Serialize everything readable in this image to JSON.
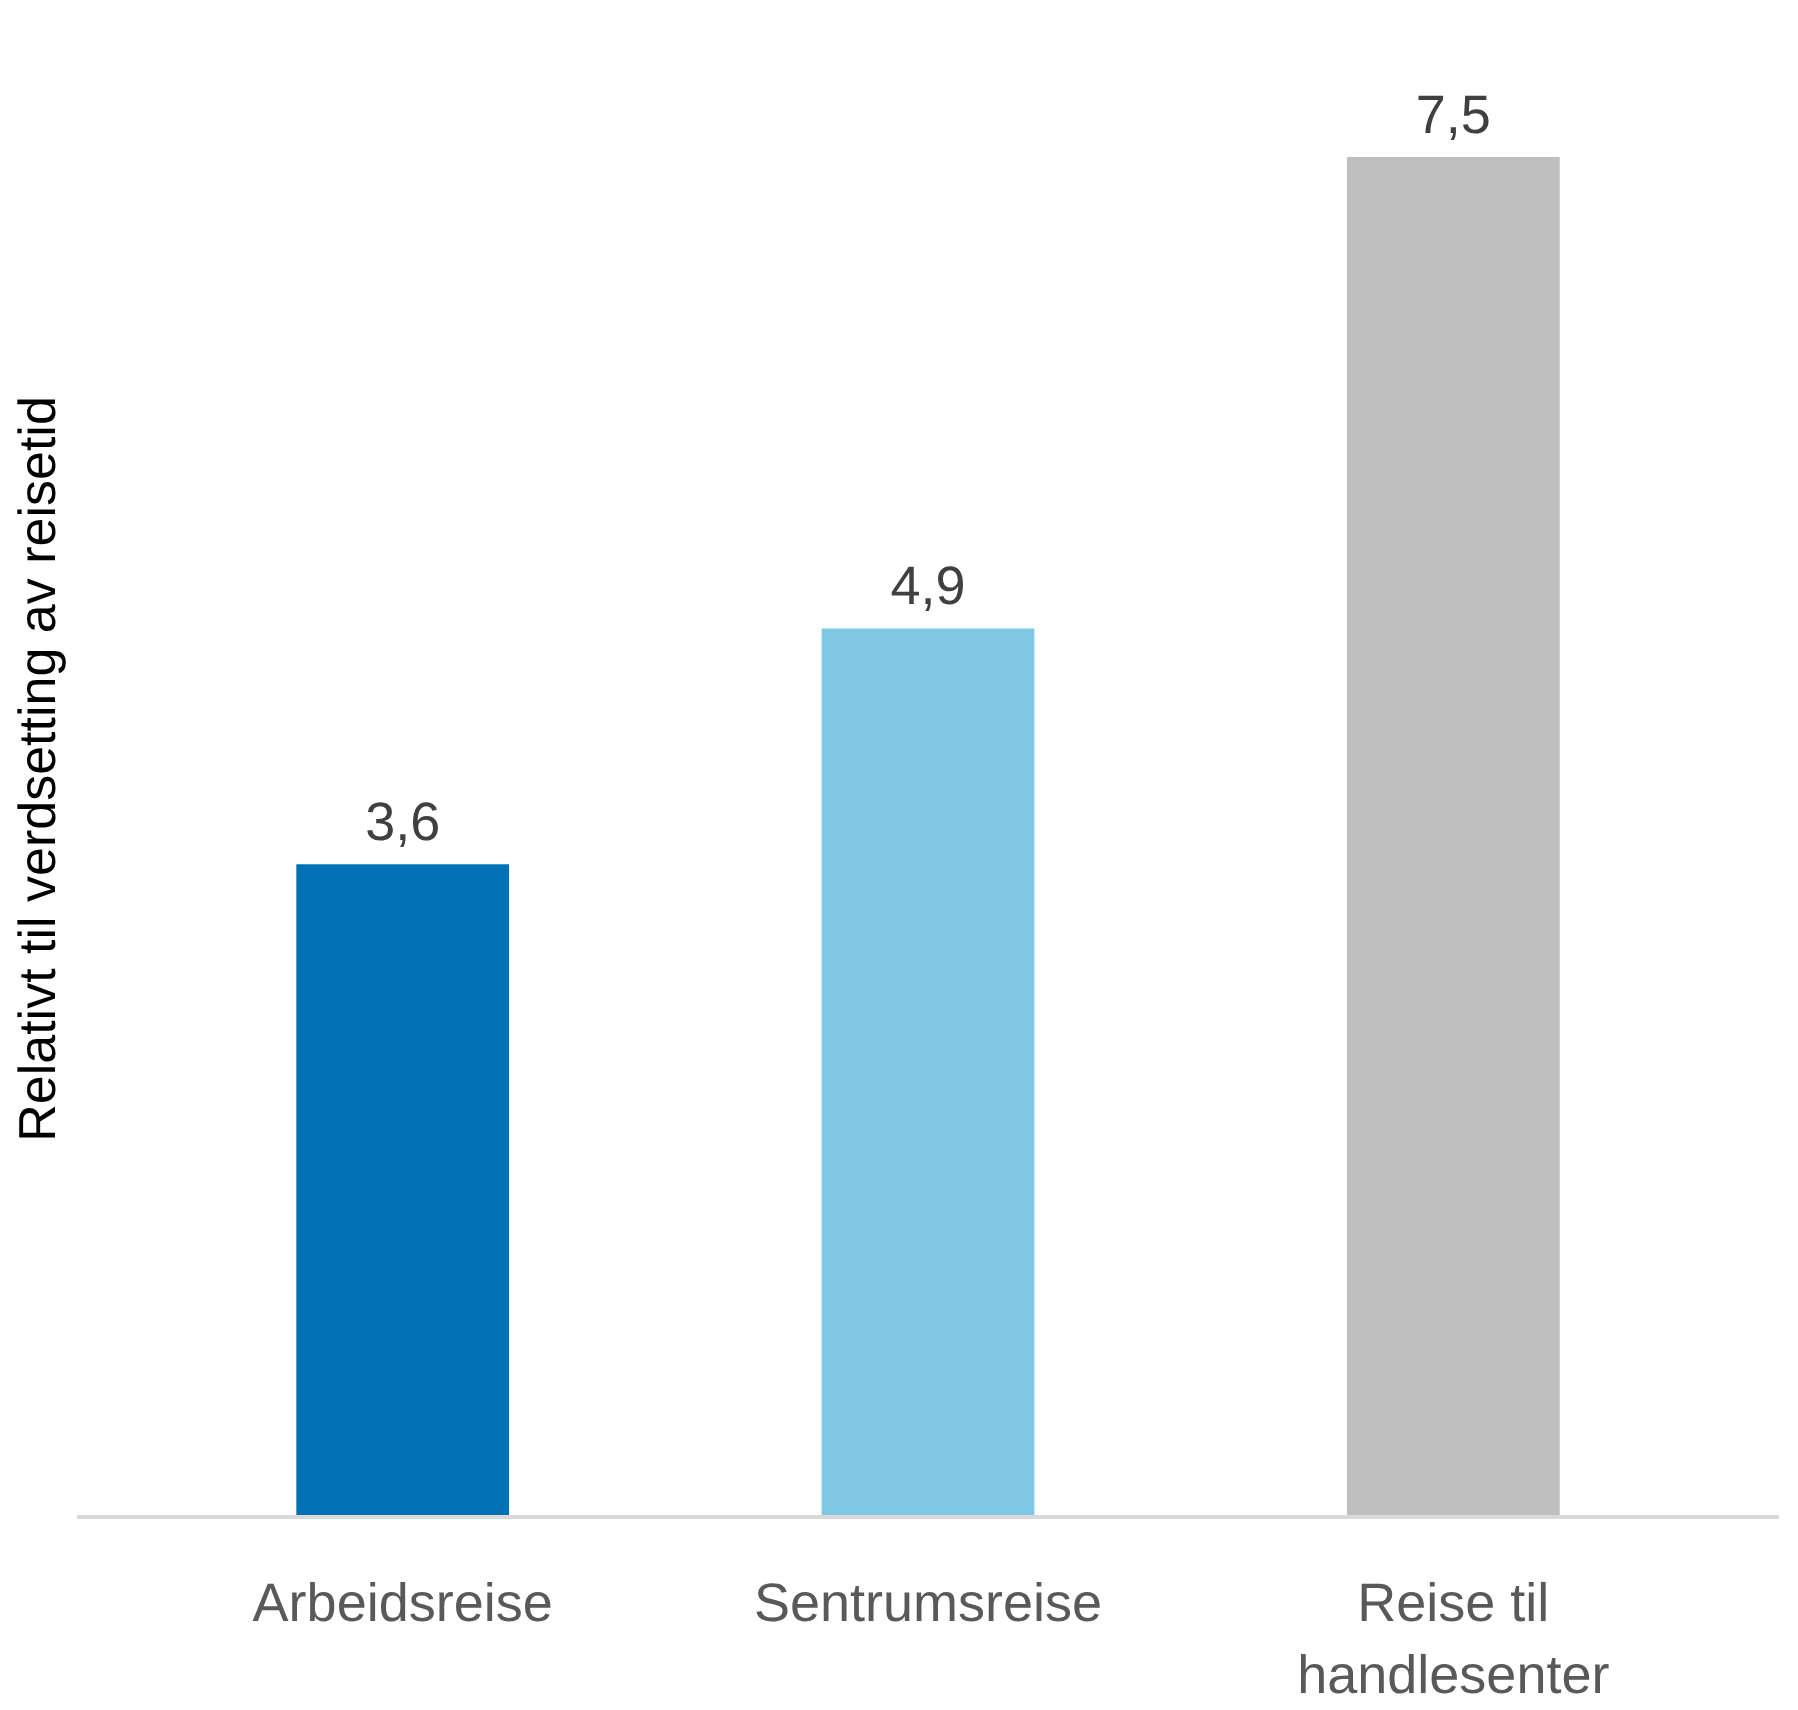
{
  "chart_data": {
    "type": "bar",
    "ylabel": "Relativt til verdsetting av reisetid",
    "categories": [
      "Arbeidsreise",
      "Sentrumsreise",
      "Reise til handlesenter"
    ],
    "values": [
      3.6,
      4.9,
      7.5
    ],
    "colors": [
      "#0072b5",
      "#7ec8e6",
      "#bfbfbf"
    ],
    "value_labels": [
      "3,6",
      "4,9",
      "7,5"
    ]
  }
}
